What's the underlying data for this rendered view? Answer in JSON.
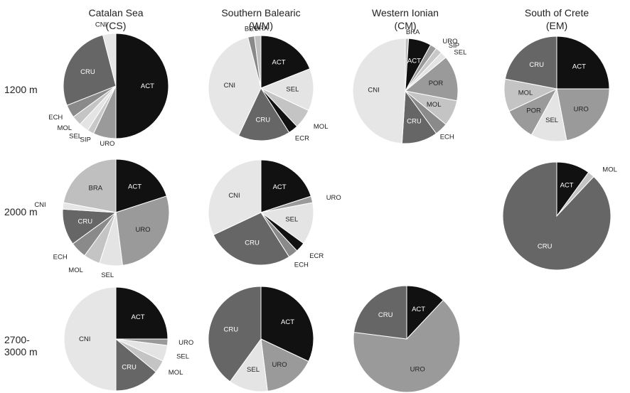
{
  "columns": [
    {
      "name": "Catalan Sea",
      "code": "(CS)"
    },
    {
      "name": "Southern Balearic",
      "code": "(WM)"
    },
    {
      "name": "Western Ionian",
      "code": "(CM)"
    },
    {
      "name": "South of Crete",
      "code": "(EM)"
    }
  ],
  "rows": [
    {
      "label": [
        "1200 m"
      ]
    },
    {
      "label": [
        "2000 m"
      ]
    },
    {
      "label": [
        "2700-",
        "3000 m"
      ]
    }
  ],
  "colors": {
    "ACT": "#111111",
    "URO": "#9a9a9a",
    "SIP": "#c8c8c8",
    "SEL": "#e4e4e4",
    "MOL": "#c4c4c4",
    "ECH": "#8a8a8a",
    "CRU": "#666666",
    "CNI": "#e6e6e6",
    "BRY": "#8a8a8a",
    "BRA": "#bfbfbf",
    "ECR": "#111111",
    "POR": "#9a9a9a"
  },
  "chart_data": [
    {
      "type": "pie",
      "region": "Catalan Sea",
      "depth": "1200 m",
      "slices": [
        {
          "label": "ACT",
          "value": 50
        },
        {
          "label": "URO",
          "value": 7
        },
        {
          "label": "SIP",
          "value": 2
        },
        {
          "label": "SEL",
          "value": 3
        },
        {
          "label": "MOL",
          "value": 3
        },
        {
          "label": "ECH",
          "value": 4
        },
        {
          "label": "CRU",
          "value": 27
        },
        {
          "label": "CNI",
          "value": 4
        }
      ]
    },
    {
      "type": "pie",
      "region": "Southern Balearic",
      "depth": "1200 m",
      "slices": [
        {
          "label": "ACT",
          "value": 19
        },
        {
          "label": "SEL",
          "value": 13
        },
        {
          "label": "MOL",
          "value": 6
        },
        {
          "label": "ECR",
          "value": 3
        },
        {
          "label": "CRU",
          "value": 16
        },
        {
          "label": "CNI",
          "value": 39
        },
        {
          "label": "BRY",
          "value": 2
        },
        {
          "label": "BRA",
          "value": 2
        }
      ]
    },
    {
      "type": "pie",
      "region": "Western Ionian",
      "depth": "1200 m",
      "slices": [
        {
          "label": "BRA",
          "value": 1
        },
        {
          "label": "ACT",
          "value": 7
        },
        {
          "label": "URO",
          "value": 2
        },
        {
          "label": "SIP",
          "value": 2
        },
        {
          "label": "SEL",
          "value": 2
        },
        {
          "label": "POR",
          "value": 14
        },
        {
          "label": "MOL",
          "value": 8
        },
        {
          "label": "ECH",
          "value": 4
        },
        {
          "label": "CRU",
          "value": 11
        },
        {
          "label": "CNI",
          "value": 49
        }
      ]
    },
    {
      "type": "pie",
      "region": "South of Crete",
      "depth": "1200 m",
      "slices": [
        {
          "label": "ACT",
          "value": 25
        },
        {
          "label": "URO",
          "value": 22
        },
        {
          "label": "SEL",
          "value": 11
        },
        {
          "label": "POR",
          "value": 10
        },
        {
          "label": "MOL",
          "value": 10
        },
        {
          "label": "CRU",
          "value": 22
        }
      ]
    },
    {
      "type": "pie",
      "region": "Catalan Sea",
      "depth": "2000 m",
      "slices": [
        {
          "label": "ACT",
          "value": 20
        },
        {
          "label": "URO",
          "value": 28
        },
        {
          "label": "SEL",
          "value": 7
        },
        {
          "label": "MOL",
          "value": 5
        },
        {
          "label": "ECH",
          "value": 5
        },
        {
          "label": "CRU",
          "value": 11
        },
        {
          "label": "CNI",
          "value": 2
        },
        {
          "label": "BRA",
          "value": 22
        }
      ]
    },
    {
      "type": "pie",
      "region": "Southern Balearic",
      "depth": "2000 m",
      "slices": [
        {
          "label": "ACT",
          "value": 20
        },
        {
          "label": "URO",
          "value": 2
        },
        {
          "label": "SEL",
          "value": 13
        },
        {
          "label": "ECR",
          "value": 3
        },
        {
          "label": "ECH",
          "value": 3
        },
        {
          "label": "CRU",
          "value": 27
        },
        {
          "label": "CNI",
          "value": 32
        }
      ]
    },
    {
      "type": "pie",
      "region": "South of Crete",
      "depth": "2000 m",
      "slices": [
        {
          "label": "ACT",
          "value": 10
        },
        {
          "label": "MOL",
          "value": 2
        },
        {
          "label": "CRU",
          "value": 88
        }
      ]
    },
    {
      "type": "pie",
      "region": "Catalan Sea",
      "depth": "2700-3000 m",
      "slices": [
        {
          "label": "ACT",
          "value": 25
        },
        {
          "label": "URO",
          "value": 2
        },
        {
          "label": "SEL",
          "value": 5
        },
        {
          "label": "MOL",
          "value": 4
        },
        {
          "label": "CRU",
          "value": 14
        },
        {
          "label": "CNI",
          "value": 50
        }
      ]
    },
    {
      "type": "pie",
      "region": "Southern Balearic",
      "depth": "2700-3000 m",
      "slices": [
        {
          "label": "ACT",
          "value": 32
        },
        {
          "label": "URO",
          "value": 16
        },
        {
          "label": "SEL",
          "value": 12
        },
        {
          "label": "CRU",
          "value": 40
        }
      ]
    },
    {
      "type": "pie",
      "region": "Western Ionian",
      "depth": "2700-3000 m",
      "slices": [
        {
          "label": "ACT",
          "value": 12
        },
        {
          "label": "URO",
          "value": 65
        },
        {
          "label": "CRU",
          "value": 23
        }
      ]
    }
  ]
}
